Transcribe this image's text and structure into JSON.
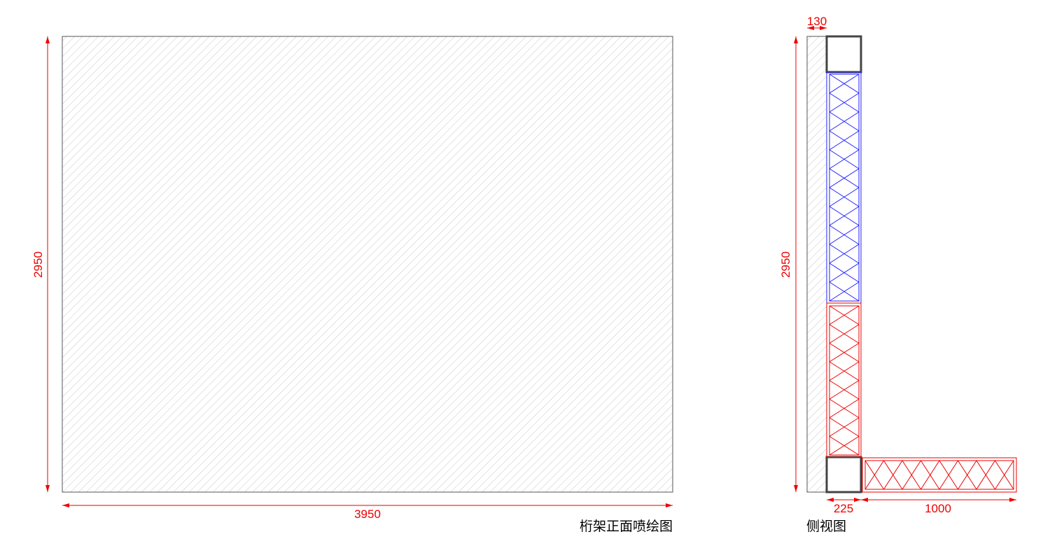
{
  "front_view": {
    "width_dimension": 3950,
    "height_dimension": 2950,
    "caption": "桁架正面喷绘图"
  },
  "side_view": {
    "height_dimension": 2950,
    "wall_dimension": 130,
    "column_dimension": 225,
    "base_dimension": 1000,
    "caption": "侧视图"
  }
}
